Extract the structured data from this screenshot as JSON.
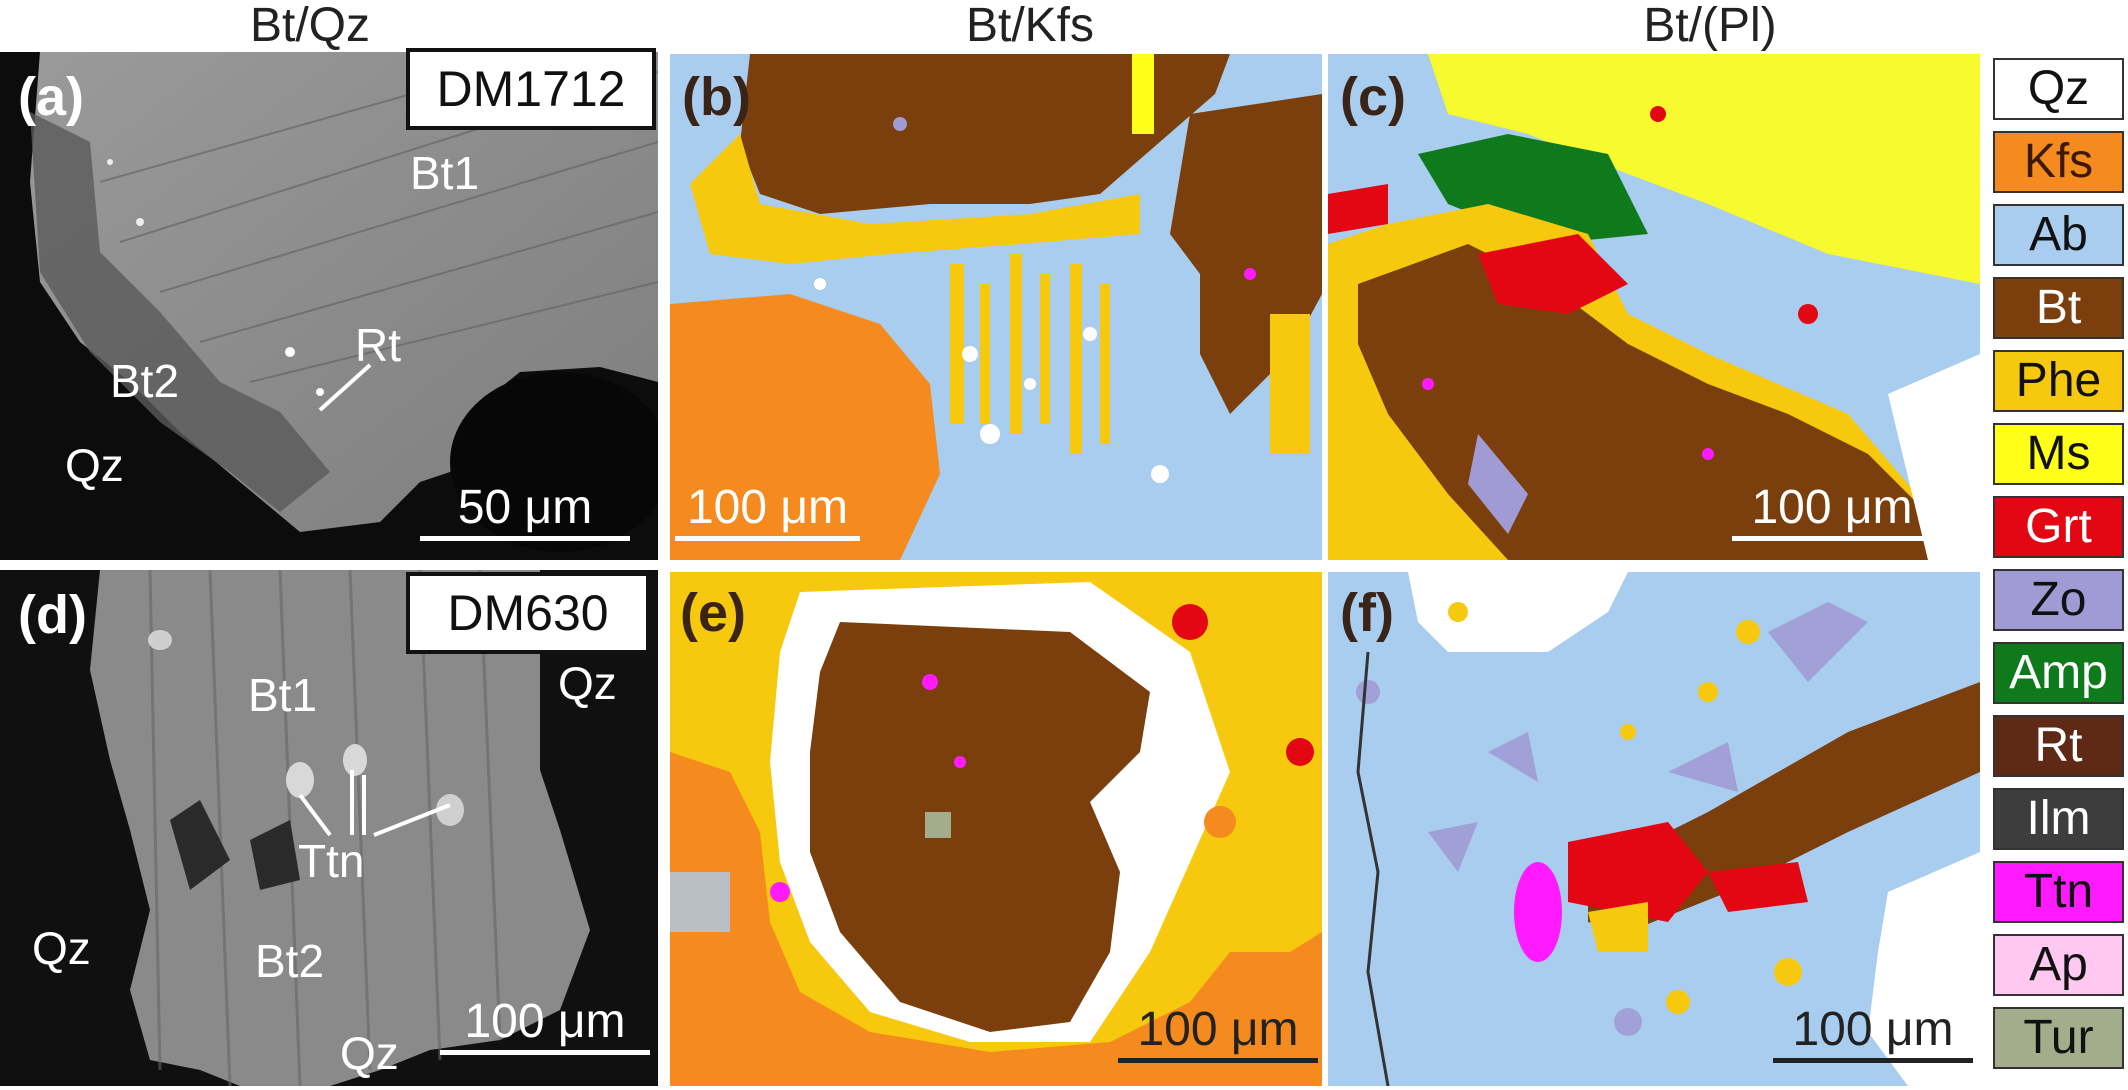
{
  "column_titles": [
    "Bt/Qz",
    "Bt/Kfs",
    "Bt/(Pl)"
  ],
  "panels": {
    "a": {
      "label": "(a)",
      "sample": "DM1712",
      "scale": "50 μm",
      "minerals": [
        "Bt1",
        "Bt2",
        "Rt",
        "Qz"
      ]
    },
    "b": {
      "label": "(b)",
      "scale": "100 μm"
    },
    "c": {
      "label": "(c)",
      "scale": "100 μm"
    },
    "d": {
      "label": "(d)",
      "sample": "DM630",
      "scale": "100 μm",
      "minerals": [
        "Bt1",
        "Qz",
        "Ttn",
        "Qz",
        "Bt2",
        "Qz"
      ]
    },
    "e": {
      "label": "(e)",
      "scale": "100 μm"
    },
    "f": {
      "label": "(f)",
      "scale": "100 μm"
    }
  },
  "legend": [
    {
      "name": "Qz",
      "color": "#ffffff",
      "text": "#111111"
    },
    {
      "name": "Kfs",
      "color": "#f58a1f",
      "text": "#3a1a00"
    },
    {
      "name": "Ab",
      "color": "#a9cdef",
      "text": "#111111"
    },
    {
      "name": "Bt",
      "color": "#7a3f0c",
      "text": "#ffffff"
    },
    {
      "name": "Phe",
      "color": "#f7c90e",
      "text": "#111111"
    },
    {
      "name": "Ms",
      "color": "#ffff1a",
      "text": "#111111"
    },
    {
      "name": "Grt",
      "color": "#e30613",
      "text": "#ffffff"
    },
    {
      "name": "Zo",
      "color": "#a09bd4",
      "text": "#111111"
    },
    {
      "name": "Amp",
      "color": "#0e7a1c",
      "text": "#ffffff"
    },
    {
      "name": "Rt",
      "color": "#5e2a16",
      "text": "#ffffff"
    },
    {
      "name": "Ilm",
      "color": "#3d3d3d",
      "text": "#ffffff"
    },
    {
      "name": "Ttn",
      "color": "#ff1aff",
      "text": "#111111"
    },
    {
      "name": "Ap",
      "color": "#ffc8f0",
      "text": "#111111"
    },
    {
      "name": "Tur",
      "color": "#a3ad8c",
      "text": "#111111"
    }
  ]
}
